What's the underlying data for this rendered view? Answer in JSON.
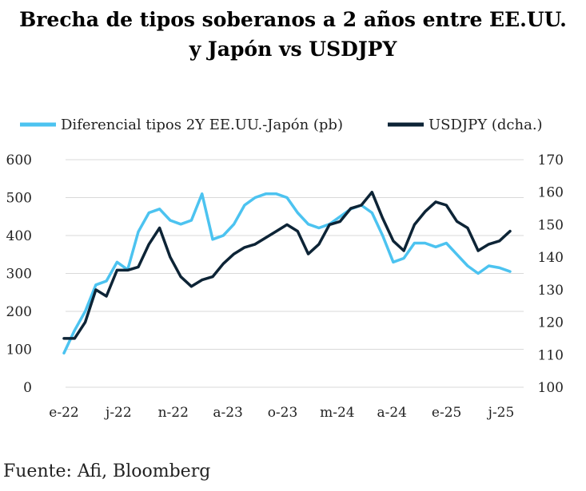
{
  "title_line1": "Brecha de tipos soberanos a 2 años entre EE.UU.",
  "title_line2": "y Japón vs USDJPY",
  "source": "Fuente: Afi, Bloomberg",
  "colors": {
    "differential": "#4cc3f0",
    "usdjpy": "#0d2436",
    "grid": "#d9d9d9"
  },
  "chart_data": {
    "type": "line",
    "x_labels": [
      "e-22",
      "j-22",
      "n-22",
      "a-23",
      "o-23",
      "m-24",
      "a-24",
      "e-25",
      "j-25"
    ],
    "y_left": {
      "ticks": [
        0,
        100,
        200,
        300,
        400,
        500,
        600
      ],
      "lim": [
        0,
        600
      ]
    },
    "y_right": {
      "ticks": [
        100,
        110,
        120,
        130,
        140,
        150,
        160,
        170
      ],
      "lim": [
        100,
        170
      ]
    },
    "legend_position": "top",
    "grid": true,
    "series": [
      {
        "name": "Diferencial tipos 2Y EE.UU.-Japón (pb)",
        "axis": "left",
        "x": [
          "2022-01",
          "2022-02",
          "2022-03",
          "2022-04",
          "2022-05",
          "2022-06",
          "2022-07",
          "2022-08",
          "2022-09",
          "2022-10",
          "2022-11",
          "2022-12",
          "2023-01",
          "2023-02",
          "2023-03",
          "2023-04",
          "2023-05",
          "2023-06",
          "2023-07",
          "2023-08",
          "2023-09",
          "2023-10",
          "2023-11",
          "2023-12",
          "2024-01",
          "2024-02",
          "2024-03",
          "2024-04",
          "2024-05",
          "2024-06",
          "2024-07",
          "2024-08",
          "2024-09",
          "2024-10",
          "2024-11",
          "2024-12",
          "2025-01",
          "2025-02",
          "2025-03",
          "2025-04",
          "2025-05",
          "2025-06",
          "2025-07"
        ],
        "values": [
          90,
          150,
          200,
          270,
          280,
          330,
          310,
          410,
          460,
          470,
          440,
          430,
          440,
          510,
          390,
          400,
          430,
          480,
          500,
          510,
          510,
          500,
          460,
          430,
          420,
          430,
          450,
          470,
          480,
          460,
          400,
          330,
          340,
          380,
          380,
          370,
          380,
          350,
          320,
          300,
          320,
          315,
          305
        ]
      },
      {
        "name": "USDJPY (dcha.)",
        "axis": "right",
        "x": [
          "2022-01",
          "2022-02",
          "2022-03",
          "2022-04",
          "2022-05",
          "2022-06",
          "2022-07",
          "2022-08",
          "2022-09",
          "2022-10",
          "2022-11",
          "2022-12",
          "2023-01",
          "2023-02",
          "2023-03",
          "2023-04",
          "2023-05",
          "2023-06",
          "2023-07",
          "2023-08",
          "2023-09",
          "2023-10",
          "2023-11",
          "2023-12",
          "2024-01",
          "2024-02",
          "2024-03",
          "2024-04",
          "2024-05",
          "2024-06",
          "2024-07",
          "2024-08",
          "2024-09",
          "2024-10",
          "2024-11",
          "2024-12",
          "2025-01",
          "2025-02",
          "2025-03",
          "2025-04",
          "2025-05",
          "2025-06",
          "2025-07"
        ],
        "values": [
          115,
          115,
          120,
          130,
          128,
          136,
          136,
          137,
          144,
          149,
          140,
          134,
          131,
          133,
          134,
          138,
          141,
          143,
          144,
          146,
          148,
          150,
          148,
          141,
          144,
          150,
          151,
          155,
          156,
          160,
          152,
          145,
          142,
          150,
          154,
          157,
          156,
          151,
          149,
          142,
          144,
          145,
          148
        ]
      }
    ]
  }
}
